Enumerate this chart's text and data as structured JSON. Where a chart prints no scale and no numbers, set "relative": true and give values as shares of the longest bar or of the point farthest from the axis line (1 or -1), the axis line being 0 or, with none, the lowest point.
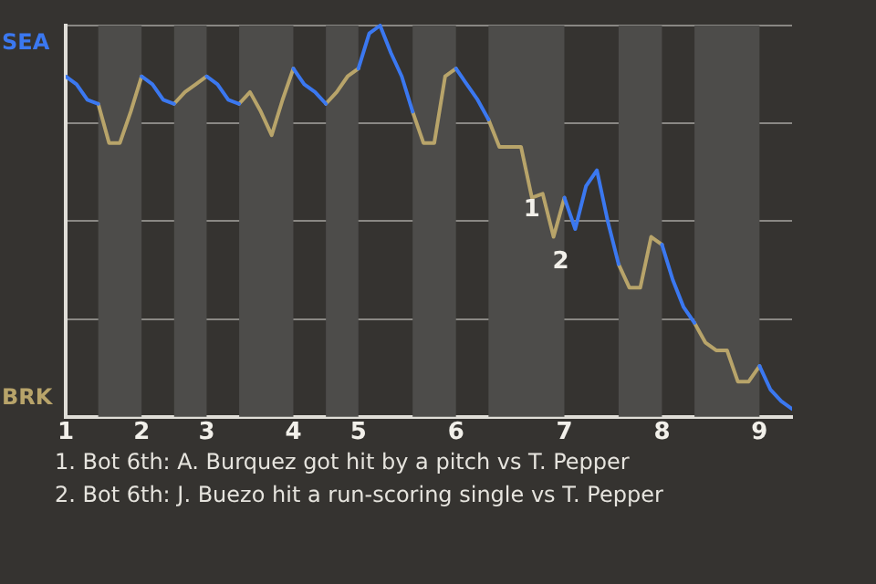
{
  "chart_data": {
    "type": "line",
    "relative": true,
    "categories": [
      "1",
      null,
      null,
      null,
      null,
      null,
      null,
      "2",
      null,
      null,
      null,
      null,
      null,
      "3",
      null,
      null,
      null,
      null,
      null,
      null,
      null,
      "4",
      null,
      null,
      null,
      null,
      null,
      "5",
      null,
      null,
      null,
      null,
      null,
      null,
      null,
      null,
      "6",
      null,
      null,
      null,
      null,
      null,
      null,
      null,
      null,
      null,
      "7",
      null,
      null,
      null,
      null,
      null,
      null,
      null,
      null,
      "8",
      null,
      null,
      null,
      null,
      null,
      null,
      null,
      null,
      "9",
      null,
      null,
      null
    ],
    "series": [
      {
        "name": "SEA",
        "color": "#3b78f0",
        "values": [
          0.87,
          0.85,
          0.81,
          0.8,
          null,
          null,
          null,
          0.87,
          0.85,
          0.81,
          0.8,
          null,
          null,
          0.87,
          0.85,
          0.81,
          0.8,
          null,
          null,
          null,
          null,
          0.89,
          0.85,
          0.83,
          0.8,
          null,
          null,
          0.89,
          0.98,
          1,
          0.93,
          0.87,
          0.78,
          null,
          null,
          null,
          0.89,
          0.85,
          0.81,
          0.76,
          null,
          null,
          null,
          null,
          null,
          null,
          0.56,
          0.48,
          0.59,
          0.63,
          0.5,
          0.39,
          null,
          null,
          null,
          0.44,
          0.35,
          0.28,
          0.24,
          null,
          null,
          null,
          null,
          null,
          0.13,
          0.07,
          0.04,
          0.02
        ]
      },
      {
        "name": "BRK",
        "color": "#b8a46a",
        "values": [
          null,
          null,
          null,
          0.8,
          0.7,
          0.7,
          0.78,
          0.87,
          null,
          null,
          0.8,
          0.83,
          0.85,
          0.87,
          null,
          null,
          0.8,
          0.83,
          0.78,
          0.72,
          0.81,
          0.89,
          null,
          null,
          0.8,
          0.83,
          0.87,
          0.89,
          null,
          null,
          null,
          null,
          0.78,
          0.7,
          0.7,
          0.87,
          0.89,
          null,
          null,
          0.76,
          0.69,
          0.69,
          0.69,
          0.56,
          0.57,
          0.46,
          0.56,
          null,
          null,
          null,
          null,
          0.39,
          0.33,
          0.33,
          0.46,
          0.44,
          null,
          null,
          0.24,
          0.19,
          0.17,
          0.17,
          0.09,
          0.09,
          0.13,
          null,
          null,
          null
        ]
      }
    ],
    "grid": "y",
    "legend": false,
    "marker": "none",
    "annotations": [
      {
        "text": "1",
        "y": 0.57
      },
      {
        "text": "2",
        "y": 0.46
      },
      "1. Bot 6th: A. Burquez got hit by a pitch vs T. Pepper",
      "2. Bot 6th: J. Buezo hit a run-scoring single vs T. Pepper"
    ]
  }
}
